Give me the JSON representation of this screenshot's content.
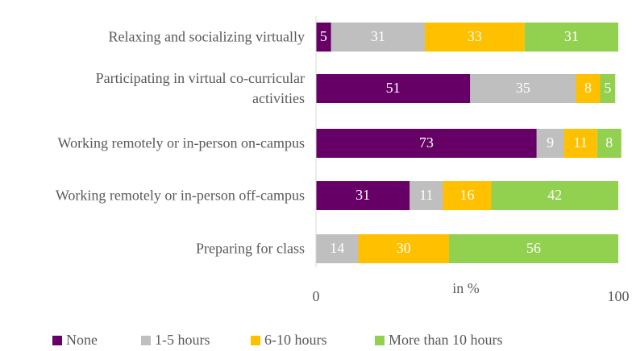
{
  "chart_data": {
    "type": "stacked_barh",
    "categories": [
      "Relaxing and socializing virtually",
      "Participating in virtual co-curricular activities",
      "Working remotely or in-person on-campus",
      "Working remotely or in-person off-campus",
      "Preparing for class"
    ],
    "series": [
      {
        "name": "None",
        "color": "#660066",
        "values": [
          5,
          51,
          73,
          31,
          0
        ]
      },
      {
        "name": "1-5 hours",
        "color": "#bfbfbf",
        "values": [
          31,
          35,
          9,
          11,
          14
        ]
      },
      {
        "name": "6-10 hours",
        "color": "#ffc000",
        "values": [
          33,
          8,
          11,
          16,
          30
        ]
      },
      {
        "name": "More than 10 hours",
        "color": "#92d050",
        "values": [
          31,
          5,
          8,
          42,
          56
        ]
      }
    ],
    "xlabel": "in %",
    "xlim": [
      0,
      100
    ],
    "xticks": [
      0,
      100
    ],
    "legend": "bottom"
  }
}
